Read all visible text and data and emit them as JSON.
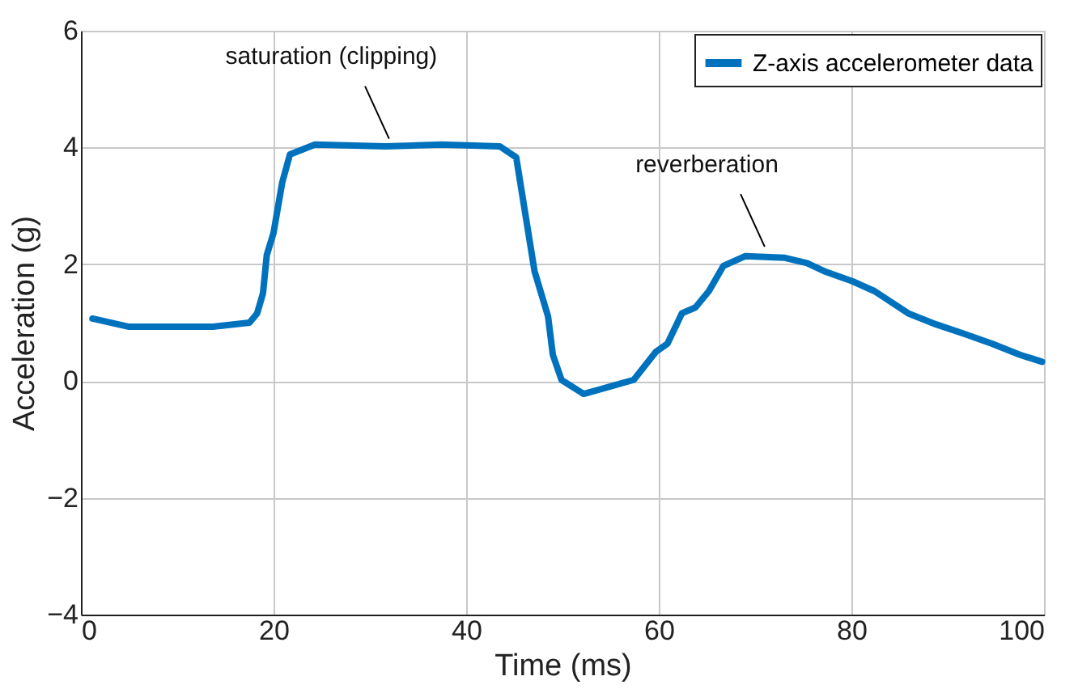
{
  "chart_data": {
    "type": "line",
    "xlabel": "Time (ms)",
    "ylabel": "Acceleration (g)",
    "xlim": [
      0,
      100
    ],
    "ylim": [
      -4,
      6
    ],
    "xticks": [
      0,
      20,
      40,
      60,
      80,
      100
    ],
    "yticks": [
      -4,
      -2,
      0,
      2,
      4,
      6
    ],
    "grid": true,
    "legend": "top right",
    "series": [
      {
        "name": "Z-axis accelerometer data",
        "color": "#0072bd",
        "x": [
          1.2,
          5,
          13.7,
          17.5,
          18.3,
          18.9,
          19.3,
          20.0,
          20.9,
          21.7,
          24.3,
          31.6,
          37.4,
          43.5,
          45.2,
          45.9,
          47.1,
          48.5,
          49.0,
          49.9,
          52.2,
          57.4,
          59.7,
          60.9,
          62.4,
          63.8,
          65.2,
          66.7,
          69.0,
          73.1,
          75.4,
          77.2,
          80.1,
          82.4,
          85.9,
          88.8,
          91.7,
          94.6,
          97.5,
          99.8
        ],
        "values": [
          1.07,
          0.93,
          0.93,
          1.0,
          1.16,
          1.5,
          2.16,
          2.54,
          3.4,
          3.88,
          4.05,
          4.02,
          4.05,
          4.02,
          3.83,
          3.11,
          1.88,
          1.11,
          0.45,
          0.02,
          -0.22,
          0.02,
          0.5,
          0.64,
          1.16,
          1.26,
          1.54,
          1.97,
          2.14,
          2.11,
          2.02,
          1.88,
          1.71,
          1.54,
          1.16,
          0.97,
          0.81,
          0.64,
          0.45,
          0.33
        ]
      }
    ],
    "annotations": [
      {
        "text": "saturation (clipping)",
        "x": 32,
        "y": 4.05
      },
      {
        "text": "reverberation",
        "x": 71,
        "y": 2.2
      }
    ]
  }
}
